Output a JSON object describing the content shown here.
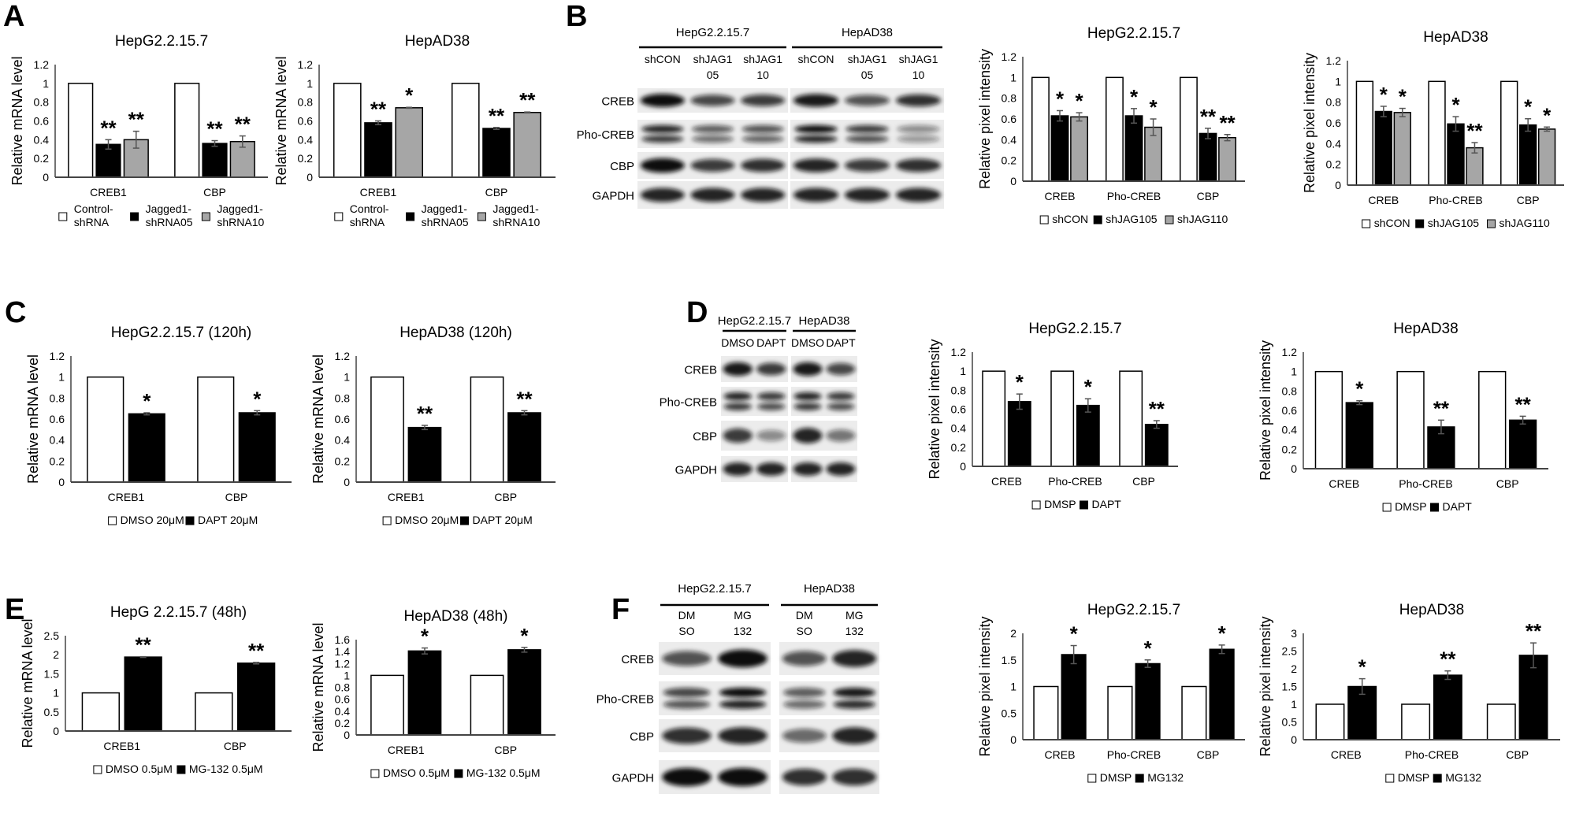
{
  "panels": {
    "A": "A",
    "B": "B",
    "C": "C",
    "D": "D",
    "E": "E",
    "F": "F"
  },
  "colors": {
    "control": "#ffffff",
    "treatment1": "#000000",
    "treatment2": "#a6a6a6",
    "error_bar": "#555555"
  },
  "chart_data": [
    {
      "id": "A1",
      "type": "bar",
      "title": "HepG2.2.15.7",
      "ylabel": "Relative mRNA level",
      "xlabel": "",
      "categories": [
        "CREB1",
        "CBP"
      ],
      "ylim": [
        0,
        1.2
      ],
      "ystep": 0.2,
      "legend": "bottom",
      "grid": false,
      "series": [
        {
          "name": "Control-shRNA",
          "color": "#ffffff",
          "values": [
            1,
            1
          ],
          "errors": [
            0,
            0
          ],
          "stars": [
            "",
            ""
          ]
        },
        {
          "name": "Jagged1-shRNA05",
          "color": "#000000",
          "values": [
            0.35,
            0.36
          ],
          "errors": [
            0.05,
            0.03
          ],
          "stars": [
            "**",
            "**"
          ]
        },
        {
          "name": "Jagged1-shRNA10",
          "color": "#a6a6a6",
          "values": [
            0.4,
            0.38
          ],
          "errors": [
            0.09,
            0.06
          ],
          "stars": [
            "**",
            "**"
          ]
        }
      ]
    },
    {
      "id": "A2",
      "type": "bar",
      "title": "HepAD38",
      "ylabel": "Relative mRNA level",
      "xlabel": "",
      "categories": [
        "CREB1",
        "CBP"
      ],
      "ylim": [
        0,
        1.2
      ],
      "ystep": 0.2,
      "legend": "bottom",
      "grid": false,
      "series": [
        {
          "name": "Control-shRNA",
          "color": "#ffffff",
          "values": [
            1,
            1
          ],
          "errors": [
            0,
            0
          ],
          "stars": [
            "",
            ""
          ]
        },
        {
          "name": "Jagged1-shRNA05",
          "color": "#000000",
          "values": [
            0.58,
            0.52
          ],
          "errors": [
            0.02,
            0.01
          ],
          "stars": [
            "**",
            "**"
          ]
        },
        {
          "name": "Jagged1-shRNA10",
          "color": "#a6a6a6",
          "values": [
            0.74,
            0.69
          ],
          "errors": [
            0.005,
            0.005
          ],
          "stars": [
            "*",
            "**"
          ]
        }
      ]
    },
    {
      "id": "B1",
      "type": "bar",
      "title": "HepG2.2.15.7",
      "ylabel": "Relative pixel intensity",
      "xlabel": "",
      "categories": [
        "CREB",
        "Pho-CREB",
        "CBP"
      ],
      "ylim": [
        0,
        1.2
      ],
      "ystep": 0.2,
      "legend": "bottom",
      "grid": false,
      "series": [
        {
          "name": "shCON",
          "color": "#ffffff",
          "values": [
            1,
            1,
            1
          ],
          "errors": [
            0,
            0,
            0
          ],
          "stars": [
            "",
            "",
            ""
          ]
        },
        {
          "name": "shJAG105",
          "color": "#000000",
          "values": [
            0.63,
            0.63,
            0.46
          ],
          "errors": [
            0.05,
            0.07,
            0.05
          ],
          "stars": [
            "*",
            "*",
            "**"
          ]
        },
        {
          "name": "shJAG110",
          "color": "#a6a6a6",
          "values": [
            0.62,
            0.52,
            0.42
          ],
          "errors": [
            0.04,
            0.08,
            0.03
          ],
          "stars": [
            "*",
            "*",
            "**"
          ]
        }
      ]
    },
    {
      "id": "B2",
      "type": "bar",
      "title": "HepAD38",
      "ylabel": "Relative pixel intensity",
      "xlabel": "",
      "categories": [
        "CREB",
        "Pho-CREB",
        "CBP"
      ],
      "ylim": [
        0,
        1.2
      ],
      "ystep": 0.2,
      "legend": "bottom",
      "grid": false,
      "series": [
        {
          "name": "shCON",
          "color": "#ffffff",
          "values": [
            1,
            1,
            1
          ],
          "errors": [
            0,
            0,
            0
          ],
          "stars": [
            "",
            "",
            ""
          ]
        },
        {
          "name": "shJAG105",
          "color": "#000000",
          "values": [
            0.71,
            0.59,
            0.58
          ],
          "errors": [
            0.05,
            0.07,
            0.06
          ],
          "stars": [
            "*",
            "*",
            "*"
          ]
        },
        {
          "name": "shJAG110",
          "color": "#a6a6a6",
          "values": [
            0.7,
            0.36,
            0.54
          ],
          "errors": [
            0.04,
            0.05,
            0.02
          ],
          "stars": [
            "*",
            "**",
            "*"
          ]
        }
      ]
    },
    {
      "id": "C1",
      "type": "bar",
      "title": "HepG2.2.15.7 (120h)",
      "ylabel": "Relative mRNA level",
      "xlabel": "",
      "categories": [
        "CREB1",
        "CBP"
      ],
      "ylim": [
        0,
        1.2
      ],
      "ystep": 0.2,
      "legend": "bottom",
      "grid": false,
      "series": [
        {
          "name": "DMSO 20μM",
          "color": "#ffffff",
          "values": [
            1,
            1
          ],
          "errors": [
            0,
            0
          ],
          "stars": [
            "",
            ""
          ]
        },
        {
          "name": "DAPT 20μM",
          "color": "#000000",
          "values": [
            0.65,
            0.66
          ],
          "errors": [
            0.01,
            0.02
          ],
          "stars": [
            "*",
            "*"
          ]
        }
      ]
    },
    {
      "id": "C2",
      "type": "bar",
      "title": "HepAD38 (120h)",
      "ylabel": "Relative mRNA level",
      "xlabel": "",
      "categories": [
        "CREB1",
        "CBP"
      ],
      "ylim": [
        0,
        1.2
      ],
      "ystep": 0.2,
      "legend": "bottom",
      "grid": false,
      "series": [
        {
          "name": "DMSO 20μM",
          "color": "#ffffff",
          "values": [
            1,
            1
          ],
          "errors": [
            0,
            0
          ],
          "stars": [
            "",
            ""
          ]
        },
        {
          "name": "DAPT 20μM",
          "color": "#000000",
          "values": [
            0.52,
            0.66
          ],
          "errors": [
            0.02,
            0.02
          ],
          "stars": [
            "**",
            "**"
          ]
        }
      ]
    },
    {
      "id": "D1",
      "type": "bar",
      "title": "HepG2.2.15.7",
      "ylabel": "Relative pixel intensity",
      "xlabel": "",
      "categories": [
        "CREB",
        "Pho-CREB",
        "CBP"
      ],
      "ylim": [
        0,
        1.2
      ],
      "ystep": 0.2,
      "legend": "bottom",
      "grid": false,
      "series": [
        {
          "name": "DMSP",
          "color": "#ffffff",
          "values": [
            1,
            1,
            1
          ],
          "errors": [
            0,
            0,
            0
          ],
          "stars": [
            "",
            "",
            ""
          ]
        },
        {
          "name": "DAPT",
          "color": "#000000",
          "values": [
            0.68,
            0.64,
            0.44
          ],
          "errors": [
            0.08,
            0.07,
            0.04
          ],
          "stars": [
            "*",
            "*",
            "**"
          ]
        }
      ]
    },
    {
      "id": "D2",
      "type": "bar",
      "title": "HepAD38",
      "ylabel": "Relative pixel intensity",
      "xlabel": "",
      "categories": [
        "CREB",
        "Pho-CREB",
        "CBP"
      ],
      "ylim": [
        0,
        1.2
      ],
      "ystep": 0.2,
      "legend": "bottom",
      "grid": false,
      "series": [
        {
          "name": "DMSP",
          "color": "#ffffff",
          "values": [
            1,
            1,
            1
          ],
          "errors": [
            0,
            0,
            0
          ],
          "stars": [
            "",
            "",
            ""
          ]
        },
        {
          "name": "DAPT",
          "color": "#000000",
          "values": [
            0.68,
            0.43,
            0.5
          ],
          "errors": [
            0.02,
            0.07,
            0.04
          ],
          "stars": [
            "*",
            "**",
            "**"
          ]
        }
      ]
    },
    {
      "id": "E1",
      "type": "bar",
      "title": "HepG 2.2.15.7 (48h)",
      "ylabel": "Relative mRNA level",
      "xlabel": "",
      "categories": [
        "CREB1",
        "CBP"
      ],
      "ylim": [
        0,
        2.5
      ],
      "ystep": 0.5,
      "legend": "bottom",
      "grid": false,
      "series": [
        {
          "name": "DMSO 0.5μM",
          "color": "#ffffff",
          "values": [
            1,
            1
          ],
          "errors": [
            0,
            0
          ],
          "stars": [
            "",
            ""
          ]
        },
        {
          "name": "MG-132 0.5μM",
          "color": "#000000",
          "values": [
            1.94,
            1.78
          ],
          "errors": [
            0.01,
            0.02
          ],
          "stars": [
            "**",
            "**"
          ]
        }
      ]
    },
    {
      "id": "E2",
      "type": "bar",
      "title": "HepAD38 (48h)",
      "ylabel": "Relative mRNA level",
      "xlabel": "",
      "categories": [
        "CREB1",
        "CBP"
      ],
      "ylim": [
        0,
        1.6
      ],
      "ystep": 0.2,
      "legend": "bottom",
      "grid": false,
      "series": [
        {
          "name": "DMSO 0.5μM",
          "color": "#ffffff",
          "values": [
            1,
            1
          ],
          "errors": [
            0,
            0
          ],
          "stars": [
            "",
            ""
          ]
        },
        {
          "name": "MG-132 0.5μM",
          "color": "#000000",
          "values": [
            1.41,
            1.43
          ],
          "errors": [
            0.05,
            0.04
          ],
          "stars": [
            "*",
            "*"
          ]
        }
      ]
    },
    {
      "id": "F1",
      "type": "bar",
      "title": "HepG2.2.15.7",
      "ylabel": "Relative pixel intensity",
      "xlabel": "",
      "categories": [
        "CREB",
        "Pho-CREB",
        "CBP"
      ],
      "ylim": [
        0,
        2
      ],
      "ystep": 0.5,
      "legend": "bottom",
      "grid": false,
      "series": [
        {
          "name": "DMSP",
          "color": "#ffffff",
          "values": [
            1,
            1,
            1
          ],
          "errors": [
            0,
            0,
            0
          ],
          "stars": [
            "",
            "",
            ""
          ]
        },
        {
          "name": "MG132",
          "color": "#000000",
          "values": [
            1.6,
            1.43,
            1.7
          ],
          "errors": [
            0.17,
            0.07,
            0.08
          ],
          "stars": [
            "*",
            "*",
            "*"
          ]
        }
      ]
    },
    {
      "id": "F2",
      "type": "bar",
      "title": "HepAD38",
      "ylabel": "Relative pixel intensity",
      "xlabel": "",
      "categories": [
        "CREB",
        "Pho-CREB",
        "CBP"
      ],
      "ylim": [
        0,
        3
      ],
      "ystep": 0.5,
      "legend": "bottom",
      "grid": false,
      "series": [
        {
          "name": "DMSP",
          "color": "#ffffff",
          "values": [
            1,
            1,
            1
          ],
          "errors": [
            0,
            0,
            0
          ],
          "stars": [
            "",
            "",
            ""
          ]
        },
        {
          "name": "MG132",
          "color": "#000000",
          "values": [
            1.5,
            1.82,
            2.38
          ],
          "errors": [
            0.22,
            0.12,
            0.35
          ],
          "stars": [
            "*",
            "**",
            "**"
          ]
        }
      ]
    }
  ],
  "blots": [
    {
      "id": "B",
      "rows": [
        "CREB",
        "Pho-CREB",
        "CBP",
        "GAPDH"
      ],
      "groups": [
        {
          "label": "HepG2.2.15.7",
          "lanes": [
            [
              "shCON"
            ],
            [
              "shJAG1",
              "05"
            ],
            [
              "shJAG1",
              "10"
            ]
          ]
        },
        {
          "label": "HepAD38",
          "lanes": [
            [
              "shCON"
            ],
            [
              "shJAG1",
              "05"
            ],
            [
              "shJAG1",
              "10"
            ]
          ]
        }
      ]
    },
    {
      "id": "D",
      "rows": [
        "CREB",
        "Pho-CREB",
        "CBP",
        "GAPDH"
      ],
      "groups": [
        {
          "label": "HepG2.2.15.7",
          "lanes": [
            [
              "DMSO"
            ],
            [
              "DAPT"
            ]
          ]
        },
        {
          "label": "HepAD38",
          "lanes": [
            [
              "DMSO"
            ],
            [
              "DAPT"
            ]
          ]
        }
      ]
    },
    {
      "id": "F",
      "rows": [
        "CREB",
        "Pho-CREB",
        "CBP",
        "GAPDH"
      ],
      "groups": [
        {
          "label": "HepG2.2.15.7",
          "lanes": [
            [
              "DM",
              "SO"
            ],
            [
              "MG",
              "132"
            ]
          ]
        },
        {
          "label": "HepAD38",
          "lanes": [
            [
              "DM",
              "SO"
            ],
            [
              "MG",
              "132"
            ]
          ]
        }
      ]
    }
  ]
}
